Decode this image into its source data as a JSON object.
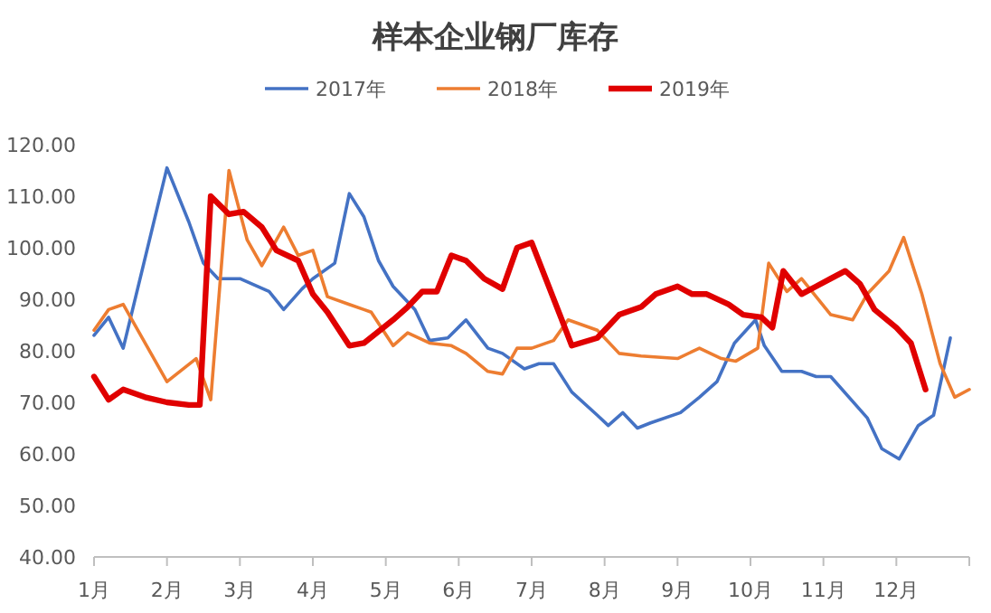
{
  "chart_data": {
    "type": "line",
    "title": "样本企业钢厂库存",
    "legend": "top",
    "grid": false,
    "marker": "none",
    "line_style": "solid",
    "xlim": [
      1,
      13
    ],
    "xticks": [
      {
        "value": 1,
        "label": "1月"
      },
      {
        "value": 2,
        "label": "2月"
      },
      {
        "value": 3,
        "label": "3月"
      },
      {
        "value": 4,
        "label": "4月"
      },
      {
        "value": 5,
        "label": "5月"
      },
      {
        "value": 6,
        "label": "6月"
      },
      {
        "value": 7,
        "label": "7月"
      },
      {
        "value": 8,
        "label": "8月"
      },
      {
        "value": 9,
        "label": "9月"
      },
      {
        "value": 10,
        "label": "10月"
      },
      {
        "value": 11,
        "label": "11月"
      },
      {
        "value": 12,
        "label": "12月"
      },
      {
        "value": 13,
        "label": null
      }
    ],
    "ylim": [
      40,
      120
    ],
    "yticks": [
      {
        "value": 40,
        "label": "40.00"
      },
      {
        "value": 50,
        "label": "50.00"
      },
      {
        "value": 60,
        "label": "60.00"
      },
      {
        "value": 70,
        "label": "70.00"
      },
      {
        "value": 80,
        "label": "80.00"
      },
      {
        "value": 90,
        "label": "90.00"
      },
      {
        "value": 100,
        "label": "100.00"
      },
      {
        "value": 110,
        "label": "110.00"
      },
      {
        "value": 120,
        "label": "120.00"
      }
    ],
    "series": [
      {
        "name": "2017年",
        "color": "#4472c4",
        "x": [
          1,
          1.2,
          1.4,
          2.0,
          2.3,
          2.5,
          2.7,
          3.0,
          3.4,
          3.6,
          3.85,
          4.0,
          4.3,
          4.5,
          4.7,
          4.9,
          5.1,
          5.4,
          5.6,
          5.85,
          6.1,
          6.4,
          6.6,
          6.9,
          7.1,
          7.3,
          7.55,
          7.9,
          8.05,
          8.25,
          8.45,
          8.63,
          9.04,
          9.3,
          9.54,
          9.78,
          10.07,
          10.19,
          10.43,
          10.7,
          10.9,
          11.1,
          11.6,
          11.8,
          12.04,
          12.3,
          12.51,
          12.74
        ],
        "values": [
          83,
          86.5,
          80.5,
          115.5,
          105,
          97,
          94,
          94,
          91.5,
          88,
          92,
          94,
          97,
          110.5,
          106,
          97.5,
          92.5,
          88,
          82,
          82.5,
          86,
          80.5,
          79.5,
          76.5,
          77.5,
          77.5,
          72,
          67.5,
          65.5,
          68,
          65,
          66,
          68,
          71,
          74,
          81.5,
          86,
          81,
          76,
          76,
          75,
          75,
          67,
          61,
          59,
          65.5,
          67.5,
          82.5
        ]
      },
      {
        "name": "2018年",
        "color": "#ed7d31",
        "x": [
          1,
          1.2,
          1.4,
          2.0,
          2.4,
          2.6,
          2.85,
          3.1,
          3.3,
          3.6,
          3.8,
          4.0,
          4.2,
          4.5,
          4.7,
          4.8,
          5.1,
          5.3,
          5.6,
          5.9,
          6.1,
          6.4,
          6.6,
          6.8,
          7.0,
          7.3,
          7.5,
          7.9,
          8.2,
          8.5,
          9.0,
          9.3,
          9.6,
          9.8,
          10.1,
          10.25,
          10.5,
          10.7,
          10.9,
          11.1,
          11.4,
          11.6,
          11.9,
          12.1,
          12.35,
          12.6,
          12.8,
          13.0
        ],
        "values": [
          84,
          88,
          89,
          74,
          78.5,
          70.5,
          115,
          101.5,
          96.5,
          104,
          98.5,
          99.5,
          90.5,
          89,
          88,
          87.5,
          81,
          83.5,
          81.5,
          81,
          79.5,
          76,
          75.5,
          80.5,
          80.5,
          82,
          86,
          84,
          79.5,
          79,
          78.5,
          80.5,
          78.5,
          78,
          80.5,
          97,
          91.5,
          94,
          90.5,
          87,
          86,
          91,
          95.5,
          102,
          91,
          77.5,
          71,
          72.5
        ]
      },
      {
        "name": "2019年",
        "color": "#e00000",
        "x": [
          1,
          1.2,
          1.4,
          1.7,
          2.0,
          2.3,
          2.45,
          2.6,
          2.85,
          3.05,
          3.3,
          3.5,
          3.8,
          4.0,
          4.2,
          4.5,
          4.7,
          5.1,
          5.3,
          5.5,
          5.7,
          5.9,
          6.1,
          6.35,
          6.6,
          6.8,
          7.0,
          7.4,
          7.55,
          7.9,
          8.0,
          8.2,
          8.5,
          8.7,
          9.0,
          9.2,
          9.4,
          9.7,
          9.9,
          10.15,
          10.3,
          10.45,
          10.7,
          10.9,
          11.1,
          11.3,
          11.5,
          11.7,
          12.0,
          12.2,
          12.4
        ],
        "values": [
          75,
          70.5,
          72.5,
          71,
          70,
          69.5,
          69.5,
          110,
          106.5,
          107,
          104,
          99.5,
          97.5,
          91,
          87.5,
          81,
          81.5,
          86,
          88.5,
          91.5,
          91.5,
          98.5,
          97.5,
          94,
          92,
          100,
          101,
          86.5,
          81,
          82.5,
          84,
          87,
          88.5,
          91,
          92.5,
          91,
          91,
          89,
          87,
          86.5,
          84.5,
          95.5,
          91,
          92.5,
          94,
          95.5,
          93,
          88,
          84.5,
          81.5,
          72.5
        ]
      }
    ]
  }
}
